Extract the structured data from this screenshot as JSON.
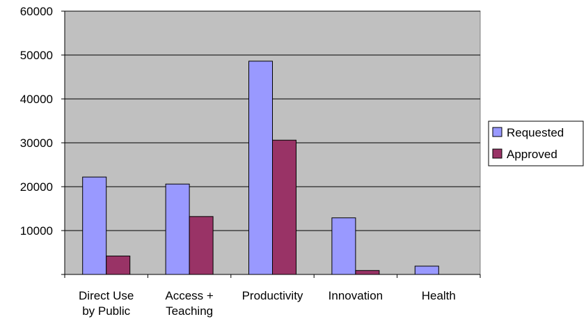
{
  "chart_data": {
    "type": "bar",
    "title": "",
    "xlabel": "",
    "ylabel": "",
    "ylim": [
      0,
      60000
    ],
    "yticks": [
      0,
      10000,
      20000,
      30000,
      40000,
      50000,
      60000
    ],
    "ytick_labels": [
      "",
      "10000",
      "20000",
      "30000",
      "40000",
      "50000",
      "60000"
    ],
    "categories": [
      "Direct Use by Public",
      "Access + Teaching",
      "Productivity",
      "Innovation",
      "Health"
    ],
    "category_label_lines": [
      [
        "Direct Use",
        "by Public"
      ],
      [
        "Access +",
        "Teaching"
      ],
      [
        "Productivity"
      ],
      [
        "Innovation"
      ],
      [
        "Health"
      ]
    ],
    "series": [
      {
        "name": "Requested",
        "values": [
          22200,
          20600,
          48600,
          12900,
          1900
        ]
      },
      {
        "name": "Approved",
        "values": [
          4200,
          13200,
          30600,
          900,
          0
        ]
      }
    ],
    "colors": {
      "requested": "#9999ff",
      "approved": "#993366",
      "plot_background": "#c0c0c0",
      "grid": "#000000",
      "axis": "#000000"
    },
    "grid": true,
    "legend_position": "right"
  }
}
